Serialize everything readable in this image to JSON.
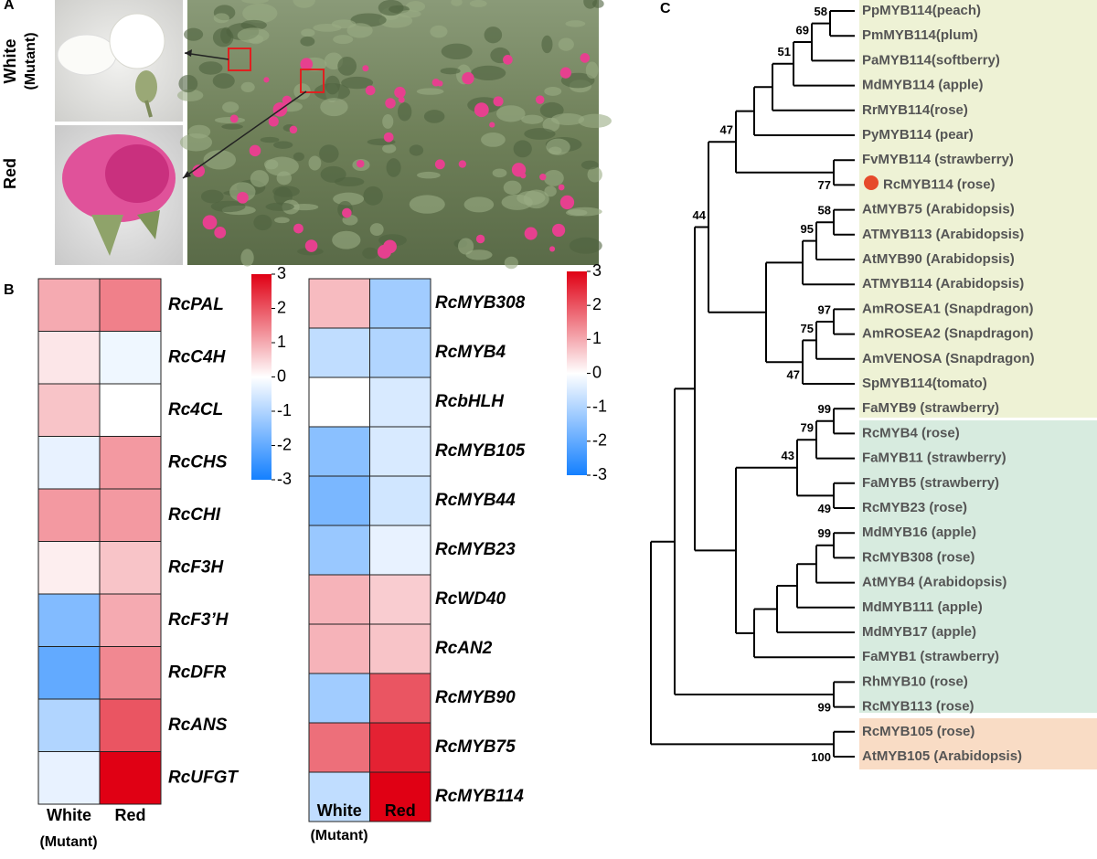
{
  "panels": {
    "a": "A",
    "b": "B",
    "c": "C"
  },
  "photos": {
    "white_label": "White",
    "white_sublabel": "(Mutant)",
    "red_label": "Red"
  },
  "heatmaps": [
    {
      "columns": [
        "White",
        "Red"
      ],
      "column_note": "(Mutant)",
      "range": [
        -3,
        3
      ],
      "ticks": [
        3,
        2,
        1,
        0,
        -1,
        -2,
        -3
      ],
      "rows": [
        {
          "gene": "RcPAL",
          "values": [
            1.0,
            1.5
          ]
        },
        {
          "gene": "RcC4H",
          "values": [
            0.3,
            -0.2
          ]
        },
        {
          "gene": "Rc4CL",
          "values": [
            0.7,
            0.0
          ]
        },
        {
          "gene": "RcCHS",
          "values": [
            -0.3,
            1.2
          ]
        },
        {
          "gene": "RcCHI",
          "values": [
            1.2,
            1.2
          ]
        },
        {
          "gene": "RcF3H",
          "values": [
            0.2,
            0.7
          ]
        },
        {
          "gene": "RcF3’H",
          "values": [
            -1.6,
            1.0
          ]
        },
        {
          "gene": "RcDFR",
          "values": [
            -2.0,
            1.4
          ]
        },
        {
          "gene": "RcANS",
          "values": [
            -1.0,
            2.0
          ]
        },
        {
          "gene": "RcUFGT",
          "values": [
            -0.3,
            3.0
          ]
        }
      ]
    },
    {
      "columns": [
        "White",
        "Red"
      ],
      "column_note": "(Mutant)",
      "range": [
        -3,
        3
      ],
      "ticks": [
        3,
        2,
        1,
        0,
        -1,
        -2,
        -3
      ],
      "rows": [
        {
          "gene": "RcMYB308",
          "values": [
            0.8,
            -1.2
          ]
        },
        {
          "gene": "RcMYB4",
          "values": [
            -0.8,
            -1.0
          ]
        },
        {
          "gene": "RcbHLH",
          "values": [
            0.0,
            -0.5
          ]
        },
        {
          "gene": "RcMYB105",
          "values": [
            -1.5,
            -0.5
          ]
        },
        {
          "gene": "RcMYB44",
          "values": [
            -1.7,
            -0.6
          ]
        },
        {
          "gene": "RcMYB23",
          "values": [
            -1.3,
            -0.3
          ]
        },
        {
          "gene": "RcWD40",
          "values": [
            0.9,
            0.6
          ]
        },
        {
          "gene": "RcAN2",
          "values": [
            0.9,
            0.7
          ]
        },
        {
          "gene": "RcMYB90",
          "values": [
            -1.2,
            2.0
          ]
        },
        {
          "gene": "RcMYB75",
          "values": [
            1.7,
            2.6
          ]
        },
        {
          "gene": "RcMYB114",
          "values": [
            -0.8,
            3.0
          ]
        }
      ]
    }
  ],
  "tree": {
    "leaves": [
      "PpMYB114(peach)",
      "PmMYB114(plum)",
      "PaMYB114(softberry)",
      "MdMYB114 (apple)",
      "RrMYB114(rose)",
      "PyMYB114 (pear)",
      "FvMYB114 (strawberry)",
      "RcMYB114 (rose)",
      "AtMYB75 (Arabidopsis)",
      "ATMYB113 (Arabidopsis)",
      "AtMYB90 (Arabidopsis)",
      "ATMYB114 (Arabidopsis)",
      "AmROSEA1 (Snapdragon)",
      "AmROSEA2 (Snapdragon)",
      "AmVENOSA (Snapdragon)",
      "SpMYB114(tomato)",
      "FaMYB9 (strawberry)",
      "RcMYB4 (rose)",
      "FaMYB11 (strawberry)",
      "FaMYB5 (strawberry)",
      "RcMYB23 (rose)",
      "MdMYB16 (apple)",
      "RcMYB308 (rose)",
      "AtMYB4 (Arabidopsis)",
      "MdMYB111 (apple)",
      "MdMYB17 (apple)",
      "FaMYB1 (strawberry)",
      "RhMYB10 (rose)",
      "RcMYB113 (rose)",
      "RcMYB105 (rose)",
      "AtMYB105 (Arabidopsis)"
    ],
    "bootstrap": [
      58,
      69,
      51,
      47,
      77,
      58,
      44,
      95,
      97,
      75,
      47,
      99,
      79,
      43,
      49,
      99,
      99,
      100
    ]
  }
}
